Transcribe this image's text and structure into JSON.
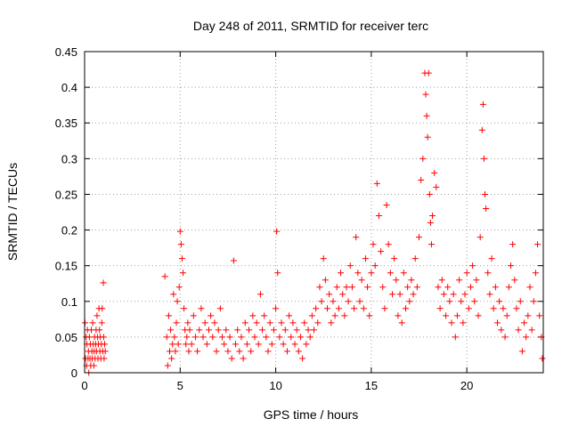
{
  "chart_data": {
    "type": "scatter",
    "title": "Day 248 of 2011, SRMTID for receiver terc",
    "xlabel": "GPS time / hours",
    "ylabel": "SRMTID / TECUs",
    "xlim": [
      0,
      24
    ],
    "ylim": [
      0,
      0.45
    ],
    "xticks": [
      0,
      5,
      10,
      15,
      20
    ],
    "xtick_labels": [
      "0",
      "5",
      "10",
      "15",
      "20"
    ],
    "yticks": [
      0,
      0.05,
      0.1,
      0.15,
      0.2,
      0.25,
      0.3,
      0.35,
      0.4,
      0.45
    ],
    "ytick_labels": [
      "0",
      "0.05",
      "0.1",
      "0.15",
      "0.2",
      "0.25",
      "0.3",
      "0.35",
      "0.4",
      "0.45"
    ],
    "grid": true,
    "marker": "plus",
    "color": "#ff0000",
    "series": [
      {
        "values_xy": [
          [
            0.02,
            0.07
          ],
          [
            0.05,
            0.02
          ],
          [
            0.08,
            0.05
          ],
          [
            0.1,
            0.01
          ],
          [
            0.12,
            0.04
          ],
          [
            0.15,
            0.06
          ],
          [
            0.18,
            0.02
          ],
          [
            0.2,
            0.03
          ],
          [
            0.22,
            0.0
          ],
          [
            0.25,
            0.05
          ],
          [
            0.28,
            0.02
          ],
          [
            0.3,
            0.04
          ],
          [
            0.32,
            0.01
          ],
          [
            0.35,
            0.06
          ],
          [
            0.38,
            0.03
          ],
          [
            0.4,
            0.02
          ],
          [
            0.42,
            0.07
          ],
          [
            0.45,
            0.04
          ],
          [
            0.48,
            0.01
          ],
          [
            0.5,
            0.03
          ],
          [
            0.52,
            0.05
          ],
          [
            0.55,
            0.02
          ],
          [
            0.58,
            0.04
          ],
          [
            0.6,
            0.06
          ],
          [
            0.62,
            0.03
          ],
          [
            0.65,
            0.08
          ],
          [
            0.68,
            0.05
          ],
          [
            0.7,
            0.02
          ],
          [
            0.72,
            0.04
          ],
          [
            0.75,
            0.09
          ],
          [
            0.78,
            0.06
          ],
          [
            0.8,
            0.03
          ],
          [
            0.82,
            0.05
          ],
          [
            0.85,
            0.02
          ],
          [
            0.88,
            0.04
          ],
          [
            0.9,
            0.07
          ],
          [
            0.92,
            0.09
          ],
          [
            0.95,
            0.03
          ],
          [
            0.98,
            0.126
          ],
          [
            1.0,
            0.05
          ],
          [
            1.02,
            0.02
          ],
          [
            1.05,
            0.04
          ],
          [
            1.08,
            0.03
          ],
          [
            4.2,
            0.135
          ],
          [
            4.3,
            0.05
          ],
          [
            4.35,
            0.01
          ],
          [
            4.4,
            0.08
          ],
          [
            4.45,
            0.03
          ],
          [
            4.5,
            0.06
          ],
          [
            4.55,
            0.02
          ],
          [
            4.6,
            0.04
          ],
          [
            4.65,
            0.11
          ],
          [
            4.7,
            0.05
          ],
          [
            4.75,
            0.03
          ],
          [
            4.8,
            0.07
          ],
          [
            4.85,
            0.1
          ],
          [
            4.9,
            0.04
          ],
          [
            4.95,
            0.12
          ],
          [
            5.0,
            0.198
          ],
          [
            5.05,
            0.18
          ],
          [
            5.1,
            0.16
          ],
          [
            5.15,
            0.14
          ],
          [
            5.2,
            0.09
          ],
          [
            5.25,
            0.06
          ],
          [
            5.3,
            0.04
          ],
          [
            5.35,
            0.05
          ],
          [
            5.4,
            0.07
          ],
          [
            5.45,
            0.03
          ],
          [
            5.5,
            0.06
          ],
          [
            5.6,
            0.04
          ],
          [
            5.7,
            0.08
          ],
          [
            5.8,
            0.05
          ],
          [
            5.9,
            0.03
          ],
          [
            6.0,
            0.06
          ],
          [
            6.1,
            0.09
          ],
          [
            6.2,
            0.05
          ],
          [
            6.3,
            0.07
          ],
          [
            6.4,
            0.04
          ],
          [
            6.5,
            0.06
          ],
          [
            6.6,
            0.08
          ],
          [
            6.7,
            0.05
          ],
          [
            6.8,
            0.07
          ],
          [
            6.9,
            0.03
          ],
          [
            7.0,
            0.06
          ],
          [
            7.1,
            0.09
          ],
          [
            7.2,
            0.05
          ],
          [
            7.3,
            0.04
          ],
          [
            7.4,
            0.06
          ],
          [
            7.5,
            0.03
          ],
          [
            7.6,
            0.05
          ],
          [
            7.7,
            0.02
          ],
          [
            7.8,
            0.157
          ],
          [
            7.9,
            0.04
          ],
          [
            8.0,
            0.06
          ],
          [
            8.1,
            0.03
          ],
          [
            8.2,
            0.05
          ],
          [
            8.3,
            0.02
          ],
          [
            8.4,
            0.07
          ],
          [
            8.5,
            0.04
          ],
          [
            8.6,
            0.06
          ],
          [
            8.7,
            0.03
          ],
          [
            8.8,
            0.08
          ],
          [
            8.9,
            0.05
          ],
          [
            9.0,
            0.07
          ],
          [
            9.1,
            0.04
          ],
          [
            9.2,
            0.11
          ],
          [
            9.3,
            0.06
          ],
          [
            9.4,
            0.08
          ],
          [
            9.5,
            0.05
          ],
          [
            9.6,
            0.03
          ],
          [
            9.7,
            0.07
          ],
          [
            9.8,
            0.04
          ],
          [
            9.9,
            0.06
          ],
          [
            10.0,
            0.09
          ],
          [
            10.05,
            0.198
          ],
          [
            10.1,
            0.14
          ],
          [
            10.2,
            0.05
          ],
          [
            10.3,
            0.07
          ],
          [
            10.4,
            0.04
          ],
          [
            10.5,
            0.06
          ],
          [
            10.6,
            0.03
          ],
          [
            10.7,
            0.08
          ],
          [
            10.8,
            0.05
          ],
          [
            10.9,
            0.07
          ],
          [
            11.0,
            0.04
          ],
          [
            11.1,
            0.06
          ],
          [
            11.2,
            0.03
          ],
          [
            11.3,
            0.05
          ],
          [
            11.4,
            0.02
          ],
          [
            11.5,
            0.07
          ],
          [
            11.6,
            0.04
          ],
          [
            11.7,
            0.06
          ],
          [
            11.8,
            0.05
          ],
          [
            11.9,
            0.08
          ],
          [
            12.0,
            0.06
          ],
          [
            12.1,
            0.09
          ],
          [
            12.2,
            0.07
          ],
          [
            12.3,
            0.12
          ],
          [
            12.4,
            0.1
          ],
          [
            12.5,
            0.16
          ],
          [
            12.6,
            0.13
          ],
          [
            12.7,
            0.09
          ],
          [
            12.8,
            0.11
          ],
          [
            12.9,
            0.07
          ],
          [
            13.0,
            0.1
          ],
          [
            13.1,
            0.08
          ],
          [
            13.2,
            0.12
          ],
          [
            13.3,
            0.09
          ],
          [
            13.4,
            0.14
          ],
          [
            13.5,
            0.11
          ],
          [
            13.6,
            0.08
          ],
          [
            13.7,
            0.12
          ],
          [
            13.8,
            0.1
          ],
          [
            13.9,
            0.15
          ],
          [
            14.0,
            0.12
          ],
          [
            14.1,
            0.09
          ],
          [
            14.2,
            0.19
          ],
          [
            14.3,
            0.14
          ],
          [
            14.4,
            0.1
          ],
          [
            14.5,
            0.13
          ],
          [
            14.6,
            0.09
          ],
          [
            14.7,
            0.16
          ],
          [
            14.8,
            0.12
          ],
          [
            14.9,
            0.08
          ],
          [
            15.0,
            0.14
          ],
          [
            15.1,
            0.18
          ],
          [
            15.2,
            0.15
          ],
          [
            15.3,
            0.265
          ],
          [
            15.4,
            0.22
          ],
          [
            15.5,
            0.17
          ],
          [
            15.6,
            0.12
          ],
          [
            15.7,
            0.09
          ],
          [
            15.8,
            0.235
          ],
          [
            15.9,
            0.18
          ],
          [
            16.0,
            0.14
          ],
          [
            16.1,
            0.11
          ],
          [
            16.2,
            0.16
          ],
          [
            16.3,
            0.13
          ],
          [
            16.4,
            0.08
          ],
          [
            16.5,
            0.11
          ],
          [
            16.6,
            0.07
          ],
          [
            16.7,
            0.14
          ],
          [
            16.8,
            0.09
          ],
          [
            16.9,
            0.12
          ],
          [
            17.0,
            0.1
          ],
          [
            17.1,
            0.13
          ],
          [
            17.2,
            0.11
          ],
          [
            17.3,
            0.16
          ],
          [
            17.4,
            0.12
          ],
          [
            17.5,
            0.19
          ],
          [
            17.6,
            0.27
          ],
          [
            17.7,
            0.3
          ],
          [
            17.8,
            0.42
          ],
          [
            17.85,
            0.39
          ],
          [
            17.9,
            0.36
          ],
          [
            17.95,
            0.33
          ],
          [
            18.0,
            0.42
          ],
          [
            18.05,
            0.25
          ],
          [
            18.1,
            0.21
          ],
          [
            18.15,
            0.18
          ],
          [
            18.2,
            0.22
          ],
          [
            18.3,
            0.28
          ],
          [
            18.4,
            0.26
          ],
          [
            18.5,
            0.12
          ],
          [
            18.6,
            0.09
          ],
          [
            18.7,
            0.13
          ],
          [
            18.8,
            0.11
          ],
          [
            18.9,
            0.08
          ],
          [
            19.0,
            0.12
          ],
          [
            19.1,
            0.1
          ],
          [
            19.2,
            0.07
          ],
          [
            19.3,
            0.11
          ],
          [
            19.4,
            0.05
          ],
          [
            19.5,
            0.08
          ],
          [
            19.6,
            0.13
          ],
          [
            19.7,
            0.1
          ],
          [
            19.8,
            0.07
          ],
          [
            19.9,
            0.11
          ],
          [
            20.0,
            0.14
          ],
          [
            20.1,
            0.09
          ],
          [
            20.2,
            0.12
          ],
          [
            20.3,
            0.15
          ],
          [
            20.4,
            0.1
          ],
          [
            20.5,
            0.13
          ],
          [
            20.6,
            0.08
          ],
          [
            20.7,
            0.19
          ],
          [
            20.8,
            0.34
          ],
          [
            20.85,
            0.376
          ],
          [
            20.9,
            0.3
          ],
          [
            20.95,
            0.25
          ],
          [
            21.0,
            0.23
          ],
          [
            21.1,
            0.14
          ],
          [
            21.2,
            0.11
          ],
          [
            21.3,
            0.16
          ],
          [
            21.4,
            0.09
          ],
          [
            21.5,
            0.12
          ],
          [
            21.6,
            0.07
          ],
          [
            21.7,
            0.1
          ],
          [
            21.8,
            0.06
          ],
          [
            21.9,
            0.09
          ],
          [
            22.0,
            0.05
          ],
          [
            22.1,
            0.08
          ],
          [
            22.2,
            0.12
          ],
          [
            22.3,
            0.15
          ],
          [
            22.4,
            0.18
          ],
          [
            22.5,
            0.13
          ],
          [
            22.6,
            0.09
          ],
          [
            22.7,
            0.06
          ],
          [
            22.8,
            0.1
          ],
          [
            22.9,
            0.03
          ],
          [
            23.0,
            0.07
          ],
          [
            23.1,
            0.05
          ],
          [
            23.2,
            0.08
          ],
          [
            23.3,
            0.12
          ],
          [
            23.4,
            0.06
          ],
          [
            23.5,
            0.1
          ],
          [
            23.6,
            0.14
          ],
          [
            23.7,
            0.18
          ],
          [
            23.8,
            0.08
          ],
          [
            23.9,
            0.05
          ],
          [
            23.95,
            0.02
          ]
        ]
      }
    ]
  }
}
